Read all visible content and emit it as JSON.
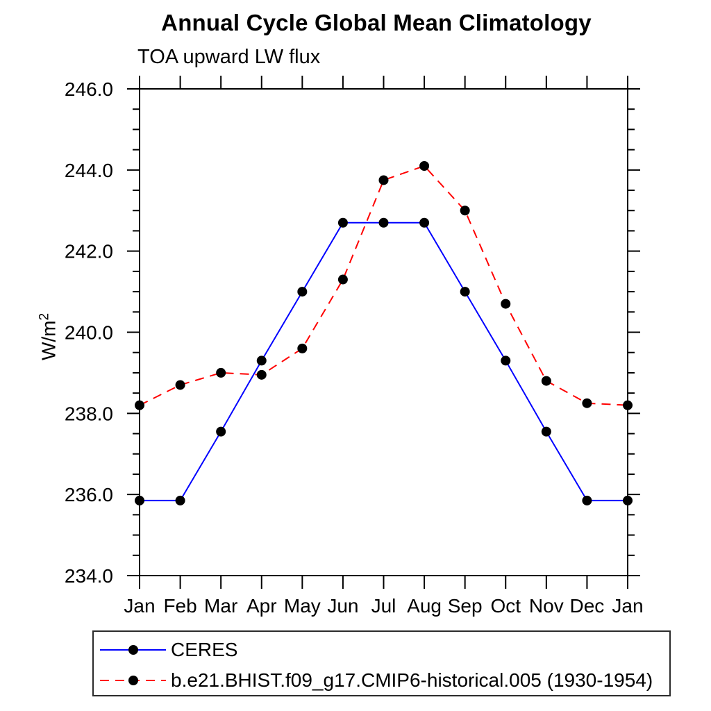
{
  "title": "Annual Cycle Global Mean Climatology",
  "subtitle": "TOA upward LW flux",
  "chart_data": {
    "type": "line",
    "x_categories": [
      "Jan",
      "Feb",
      "Mar",
      "Apr",
      "May",
      "Jun",
      "Jul",
      "Aug",
      "Sep",
      "Oct",
      "Nov",
      "Dec",
      "Jan"
    ],
    "ylabel": "W/m²",
    "ylim": [
      234.0,
      246.0
    ],
    "ytick_major_step": 2.0,
    "ytick_minor_step": 0.5,
    "ytick_labels": [
      "234.0",
      "236.0",
      "238.0",
      "240.0",
      "242.0",
      "244.0",
      "246.0"
    ],
    "grid": false,
    "legend_position": "bottom-left-box",
    "series": [
      {
        "name": "CERES",
        "color": "#0000ff",
        "line_style": "solid",
        "marker": "filled-circle",
        "marker_color": "#000000",
        "values": [
          235.85,
          235.85,
          237.55,
          239.3,
          241.0,
          242.7,
          242.7,
          242.7,
          241.0,
          239.3,
          237.55,
          235.85,
          235.85
        ]
      },
      {
        "name": "b.e21.BHIST.f09_g17.CMIP6-historical.005 (1930-1954)",
        "color": "#ff0000",
        "line_style": "dashed",
        "marker": "filled-circle",
        "marker_color": "#000000",
        "values": [
          238.2,
          238.7,
          239.0,
          238.95,
          239.6,
          241.3,
          243.75,
          244.1,
          243.0,
          240.7,
          238.8,
          238.25,
          238.2
        ]
      }
    ]
  }
}
